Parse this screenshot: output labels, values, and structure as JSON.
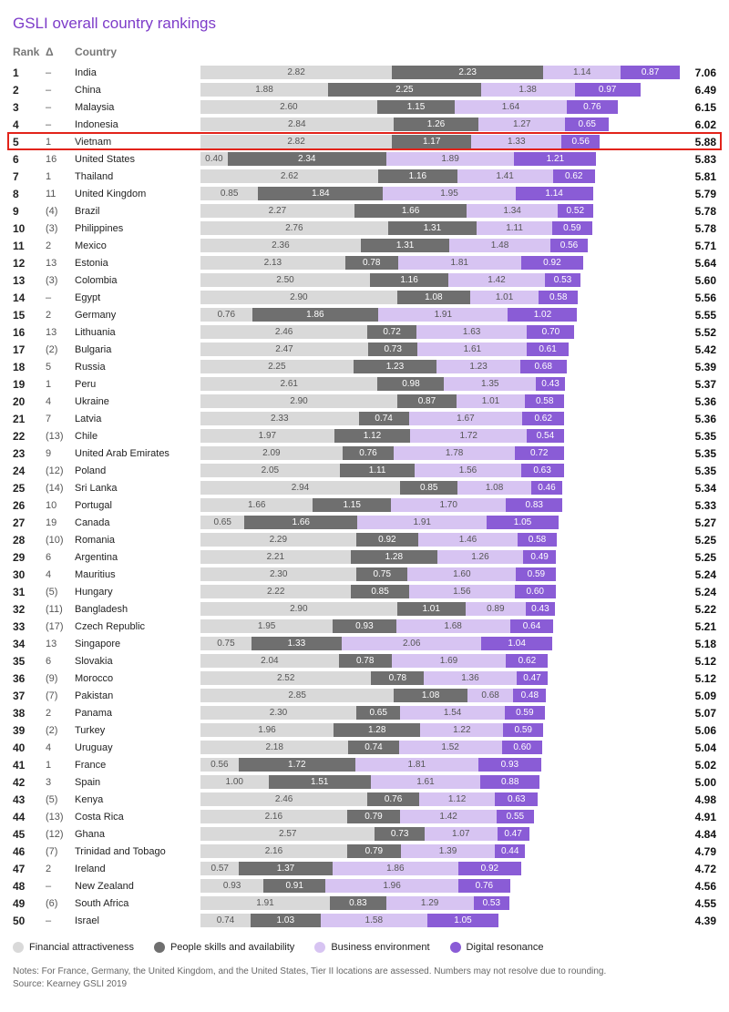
{
  "title": "GSLI overall country rankings",
  "title_color": "#7d3cc9",
  "headers": {
    "rank": "Rank",
    "delta": "Δ",
    "country": "Country"
  },
  "max_total": 7.06,
  "colors": {
    "financial": "#d9d9d9",
    "people": "#6f6f6f",
    "business": "#d7c4f2",
    "digital": "#8a5cd6",
    "text_on_light": "#555555",
    "text_on_dark": "#ffffff"
  },
  "highlight_rank": 5,
  "legend": [
    {
      "label": "Financial attractiveness",
      "color_key": "financial"
    },
    {
      "label": "People skills and availability",
      "color_key": "people"
    },
    {
      "label": "Business environment",
      "color_key": "business"
    },
    {
      "label": "Digital resonance",
      "color_key": "digital"
    }
  ],
  "notes": "Notes: For France, Germany, the United Kingdom, and the United States, Tier II locations are assessed. Numbers may not resolve due to rounding.",
  "source": "Source: Kearney GSLI 2019",
  "countries": [
    {
      "rank": 1,
      "delta": "–",
      "name": "India",
      "fin": 2.82,
      "ppl": 2.23,
      "biz": 1.14,
      "dig": 0.87,
      "total": 7.06
    },
    {
      "rank": 2,
      "delta": "–",
      "name": "China",
      "fin": 1.88,
      "ppl": 2.25,
      "biz": 1.38,
      "dig": 0.97,
      "total": 6.49
    },
    {
      "rank": 3,
      "delta": "–",
      "name": "Malaysia",
      "fin": 2.6,
      "ppl": 1.15,
      "biz": 1.64,
      "dig": 0.76,
      "total": 6.15
    },
    {
      "rank": 4,
      "delta": "–",
      "name": "Indonesia",
      "fin": 2.84,
      "ppl": 1.26,
      "biz": 1.27,
      "dig": 0.65,
      "total": 6.02
    },
    {
      "rank": 5,
      "delta": "1",
      "name": "Vietnam",
      "fin": 2.82,
      "ppl": 1.17,
      "biz": 1.33,
      "dig": 0.56,
      "total": 5.88
    },
    {
      "rank": 6,
      "delta": "16",
      "name": "United States",
      "fin": 0.4,
      "ppl": 2.34,
      "biz": 1.89,
      "dig": 1.21,
      "total": 5.83
    },
    {
      "rank": 7,
      "delta": "1",
      "name": "Thailand",
      "fin": 2.62,
      "ppl": 1.16,
      "biz": 1.41,
      "dig": 0.62,
      "total": 5.81
    },
    {
      "rank": 8,
      "delta": "11",
      "name": "United Kingdom",
      "fin": 0.85,
      "ppl": 1.84,
      "biz": 1.95,
      "dig": 1.14,
      "total": 5.79
    },
    {
      "rank": 9,
      "delta": "(4)",
      "name": "Brazil",
      "fin": 2.27,
      "ppl": 1.66,
      "biz": 1.34,
      "dig": 0.52,
      "total": 5.78
    },
    {
      "rank": 10,
      "delta": "(3)",
      "name": "Philippines",
      "fin": 2.76,
      "ppl": 1.31,
      "biz": 1.11,
      "dig": 0.59,
      "total": 5.78
    },
    {
      "rank": 11,
      "delta": "2",
      "name": "Mexico",
      "fin": 2.36,
      "ppl": 1.31,
      "biz": 1.48,
      "dig": 0.56,
      "total": 5.71
    },
    {
      "rank": 12,
      "delta": "13",
      "name": "Estonia",
      "fin": 2.13,
      "ppl": 0.78,
      "biz": 1.81,
      "dig": 0.92,
      "total": 5.64
    },
    {
      "rank": 13,
      "delta": "(3)",
      "name": "Colombia",
      "fin": 2.5,
      "ppl": 1.16,
      "biz": 1.42,
      "dig": 0.53,
      "total": 5.6
    },
    {
      "rank": 14,
      "delta": "–",
      "name": "Egypt",
      "fin": 2.9,
      "ppl": 1.08,
      "biz": 1.01,
      "dig": 0.58,
      "total": 5.56
    },
    {
      "rank": 15,
      "delta": "2",
      "name": "Germany",
      "fin": 0.76,
      "ppl": 1.86,
      "biz": 1.91,
      "dig": 1.02,
      "total": 5.55
    },
    {
      "rank": 16,
      "delta": "13",
      "name": "Lithuania",
      "fin": 2.46,
      "ppl": 0.72,
      "biz": 1.63,
      "dig": 0.7,
      "total": 5.52
    },
    {
      "rank": 17,
      "delta": "(2)",
      "name": "Bulgaria",
      "fin": 2.47,
      "ppl": 0.73,
      "biz": 1.61,
      "dig": 0.61,
      "total": 5.42
    },
    {
      "rank": 18,
      "delta": "5",
      "name": "Russia",
      "fin": 2.25,
      "ppl": 1.23,
      "biz": 1.23,
      "dig": 0.68,
      "total": 5.39
    },
    {
      "rank": 19,
      "delta": "1",
      "name": "Peru",
      "fin": 2.61,
      "ppl": 0.98,
      "biz": 1.35,
      "dig": 0.43,
      "total": 5.37
    },
    {
      "rank": 20,
      "delta": "4",
      "name": "Ukraine",
      "fin": 2.9,
      "ppl": 0.87,
      "biz": 1.01,
      "dig": 0.58,
      "total": 5.36
    },
    {
      "rank": 21,
      "delta": "7",
      "name": "Latvia",
      "fin": 2.33,
      "ppl": 0.74,
      "biz": 1.67,
      "dig": 0.62,
      "total": 5.36
    },
    {
      "rank": 22,
      "delta": "(13)",
      "name": "Chile",
      "fin": 1.97,
      "ppl": 1.12,
      "biz": 1.72,
      "dig": 0.54,
      "total": 5.35
    },
    {
      "rank": 23,
      "delta": "9",
      "name": "United Arab Emirates",
      "fin": 2.09,
      "ppl": 0.76,
      "biz": 1.78,
      "dig": 0.72,
      "total": 5.35
    },
    {
      "rank": 24,
      "delta": "(12)",
      "name": "Poland",
      "fin": 2.05,
      "ppl": 1.11,
      "biz": 1.56,
      "dig": 0.63,
      "total": 5.35
    },
    {
      "rank": 25,
      "delta": "(14)",
      "name": "Sri Lanka",
      "fin": 2.94,
      "ppl": 0.85,
      "biz": 1.08,
      "dig": 0.46,
      "total": 5.34
    },
    {
      "rank": 26,
      "delta": "10",
      "name": "Portugal",
      "fin": 1.66,
      "ppl": 1.15,
      "biz": 1.7,
      "dig": 0.83,
      "total": 5.33
    },
    {
      "rank": 27,
      "delta": "19",
      "name": "Canada",
      "fin": 0.65,
      "ppl": 1.66,
      "biz": 1.91,
      "dig": 1.05,
      "total": 5.27
    },
    {
      "rank": 28,
      "delta": "(10)",
      "name": "Romania",
      "fin": 2.29,
      "ppl": 0.92,
      "biz": 1.46,
      "dig": 0.58,
      "total": 5.25
    },
    {
      "rank": 29,
      "delta": "6",
      "name": "Argentina",
      "fin": 2.21,
      "ppl": 1.28,
      "biz": 1.26,
      "dig": 0.49,
      "total": 5.25
    },
    {
      "rank": 30,
      "delta": "4",
      "name": "Mauritius",
      "fin": 2.3,
      "ppl": 0.75,
      "biz": 1.6,
      "dig": 0.59,
      "total": 5.24
    },
    {
      "rank": 31,
      "delta": "(5)",
      "name": "Hungary",
      "fin": 2.22,
      "ppl": 0.85,
      "biz": 1.56,
      "dig": 0.6,
      "total": 5.24
    },
    {
      "rank": 32,
      "delta": "(11)",
      "name": "Bangladesh",
      "fin": 2.9,
      "ppl": 1.01,
      "biz": 0.89,
      "dig": 0.43,
      "total": 5.22
    },
    {
      "rank": 33,
      "delta": "(17)",
      "name": "Czech Republic",
      "fin": 1.95,
      "ppl": 0.93,
      "biz": 1.68,
      "dig": 0.64,
      "total": 5.21
    },
    {
      "rank": 34,
      "delta": "13",
      "name": "Singapore",
      "fin": 0.75,
      "ppl": 1.33,
      "biz": 2.06,
      "dig": 1.04,
      "total": 5.18
    },
    {
      "rank": 35,
      "delta": "6",
      "name": "Slovakia",
      "fin": 2.04,
      "ppl": 0.78,
      "biz": 1.69,
      "dig": 0.62,
      "total": 5.12
    },
    {
      "rank": 36,
      "delta": "(9)",
      "name": "Morocco",
      "fin": 2.52,
      "ppl": 0.78,
      "biz": 1.36,
      "dig": 0.47,
      "total": 5.12
    },
    {
      "rank": 37,
      "delta": "(7)",
      "name": "Pakistan",
      "fin": 2.85,
      "ppl": 1.08,
      "biz": 0.68,
      "dig": 0.48,
      "total": 5.09
    },
    {
      "rank": 38,
      "delta": "2",
      "name": "Panama",
      "fin": 2.3,
      "ppl": 0.65,
      "biz": 1.54,
      "dig": 0.59,
      "total": 5.07
    },
    {
      "rank": 39,
      "delta": "(2)",
      "name": "Turkey",
      "fin": 1.96,
      "ppl": 1.28,
      "biz": 1.22,
      "dig": 0.59,
      "total": 5.06
    },
    {
      "rank": 40,
      "delta": "4",
      "name": "Uruguay",
      "fin": 2.18,
      "ppl": 0.74,
      "biz": 1.52,
      "dig": 0.6,
      "total": 5.04
    },
    {
      "rank": 41,
      "delta": "1",
      "name": "France",
      "fin": 0.56,
      "ppl": 1.72,
      "biz": 1.81,
      "dig": 0.93,
      "total": 5.02
    },
    {
      "rank": 42,
      "delta": "3",
      "name": "Spain",
      "fin": 1.0,
      "ppl": 1.51,
      "biz": 1.61,
      "dig": 0.88,
      "total": 5.0
    },
    {
      "rank": 43,
      "delta": "(5)",
      "name": "Kenya",
      "fin": 2.46,
      "ppl": 0.76,
      "biz": 1.12,
      "dig": 0.63,
      "total": 4.98
    },
    {
      "rank": 44,
      "delta": "(13)",
      "name": "Costa Rica",
      "fin": 2.16,
      "ppl": 0.79,
      "biz": 1.42,
      "dig": 0.55,
      "total": 4.91
    },
    {
      "rank": 45,
      "delta": "(12)",
      "name": "Ghana",
      "fin": 2.57,
      "ppl": 0.73,
      "biz": 1.07,
      "dig": 0.47,
      "total": 4.84
    },
    {
      "rank": 46,
      "delta": "(7)",
      "name": "Trinidad and Tobago",
      "fin": 2.16,
      "ppl": 0.79,
      "biz": 1.39,
      "dig": 0.44,
      "total": 4.79
    },
    {
      "rank": 47,
      "delta": "2",
      "name": "Ireland",
      "fin": 0.57,
      "ppl": 1.37,
      "biz": 1.86,
      "dig": 0.92,
      "total": 4.72
    },
    {
      "rank": 48,
      "delta": "–",
      "name": "New Zealand",
      "fin": 0.93,
      "ppl": 0.91,
      "biz": 1.96,
      "dig": 0.76,
      "total": 4.56
    },
    {
      "rank": 49,
      "delta": "(6)",
      "name": "South Africa",
      "fin": 1.91,
      "ppl": 0.83,
      "biz": 1.29,
      "dig": 0.53,
      "total": 4.55
    },
    {
      "rank": 50,
      "delta": "–",
      "name": "Israel",
      "fin": 0.74,
      "ppl": 1.03,
      "biz": 1.58,
      "dig": 1.05,
      "total": 4.39
    }
  ]
}
